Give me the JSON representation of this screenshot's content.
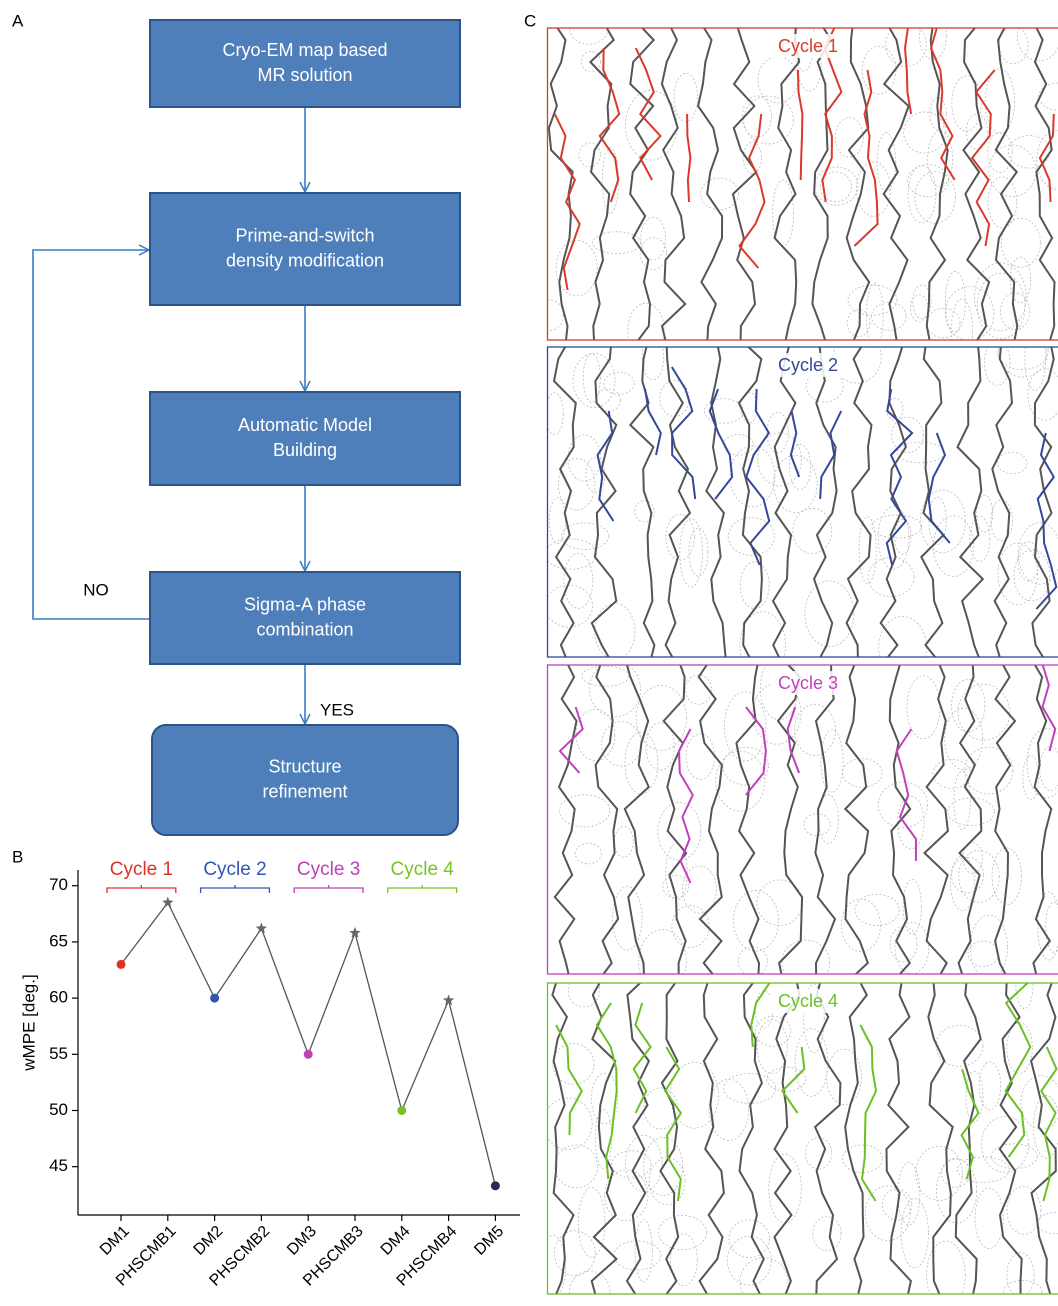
{
  "panel_labels": [
    "A",
    "B",
    "C"
  ],
  "flowchart": {
    "nodes": [
      {
        "lines": [
          "Cryo-EM map based",
          "MR solution"
        ]
      },
      {
        "lines": [
          "Prime-and-switch",
          "density modification"
        ]
      },
      {
        "lines": [
          "Automatic Model",
          "Building"
        ]
      },
      {
        "lines": [
          "Sigma-A phase",
          "combination"
        ]
      },
      {
        "lines": [
          "Structure",
          "refinement"
        ]
      }
    ],
    "no_label": "NO",
    "yes_label": "YES"
  },
  "chart_data": {
    "type": "line",
    "y_label": "wMPE [deg.]",
    "categories": [
      "DM1",
      "PHSCMB1",
      "DM2",
      "PHSCMB2",
      "DM3",
      "PHSCMB3",
      "DM4",
      "PHSCMB4",
      "DM5"
    ],
    "values": [
      63,
      68.5,
      60,
      66.2,
      55,
      65.8,
      50,
      59.8,
      43.3
    ],
    "colors": [
      "#dd3322",
      "#666666",
      "#3355b0",
      "#666666",
      "#c040b8",
      "#666666",
      "#77c322",
      "#666666",
      "#2a2a55"
    ],
    "markers": [
      "circle",
      "star",
      "circle",
      "star",
      "circle",
      "star",
      "circle",
      "star",
      "circle"
    ],
    "line_color": "#555555",
    "ylim": [
      40.7,
      71.4
    ],
    "yticks": [
      45,
      50,
      55,
      60,
      65,
      70
    ],
    "grid": false,
    "annotations": [
      {
        "text": "Cycle 1",
        "color": "#dd3322"
      },
      {
        "text": "Cycle 2",
        "color": "#3355b0"
      },
      {
        "text": "Cycle 3",
        "color": "#c040b8"
      },
      {
        "text": "Cycle 4",
        "color": "#77c322"
      }
    ]
  },
  "panel_c": {
    "cycles": [
      {
        "label": "Cycle 1",
        "color": "#d93a2b"
      },
      {
        "label": "Cycle 2",
        "color": "#34489a"
      },
      {
        "label": "Cycle 3",
        "color": "#c23fbe"
      },
      {
        "label": "Cycle 4",
        "color": "#6cc025"
      }
    ]
  }
}
